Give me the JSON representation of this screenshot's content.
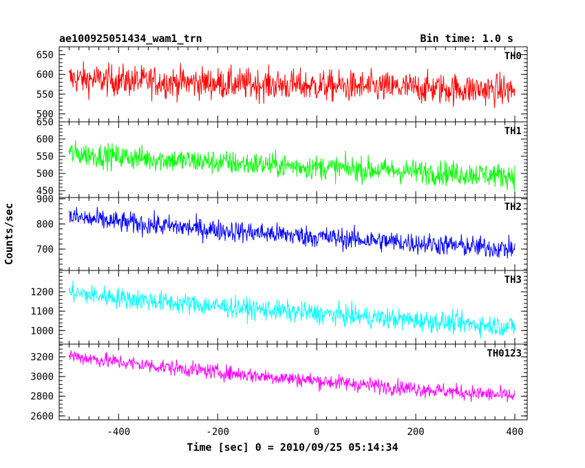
{
  "header": {
    "left_title": "ae100925051434_wam1_trn",
    "right_title": "Bin time: 1.0 s"
  },
  "chart_data": {
    "type": "line",
    "xlabel": "Time [sec] 0 = 2010/09/25 05:14:34",
    "ylabel": "Counts/sec",
    "xlim": [
      -520,
      425
    ],
    "x_ticks": [
      -400,
      -200,
      0,
      200,
      400
    ],
    "x_range": [
      -500,
      400
    ],
    "bin_time": 1.0,
    "panels": [
      {
        "name": "TH0",
        "color": "#ff0000",
        "ylim": [
          480,
          670
        ],
        "y_ticks": [
          500,
          550,
          600,
          650
        ],
        "trend_start": 590,
        "trend_end": 560,
        "noise": 28
      },
      {
        "name": "TH1",
        "color": "#00ff00",
        "ylim": [
          430,
          650
        ],
        "y_ticks": [
          450,
          500,
          550,
          600,
          650
        ],
        "trend_start": 560,
        "trend_end": 493,
        "noise": 25
      },
      {
        "name": "TH2",
        "color": "#0000ff",
        "ylim": [
          615,
          905
        ],
        "y_ticks": [
          700,
          800,
          900
        ],
        "trend_start": 830,
        "trend_end": 700,
        "noise": 30
      },
      {
        "name": "TH3",
        "color": "#00ffff",
        "ylim": [
          930,
          1310
        ],
        "y_ticks": [
          1000,
          1100,
          1200
        ],
        "trend_start": 1200,
        "trend_end": 1020,
        "noise": 38
      },
      {
        "name": "TH0123",
        "color": "#ff00ff",
        "ylim": [
          2560,
          3330
        ],
        "y_ticks": [
          2600,
          2800,
          3000,
          3200
        ],
        "trend_start": 3220,
        "trend_end": 2800,
        "noise": 55
      }
    ]
  }
}
